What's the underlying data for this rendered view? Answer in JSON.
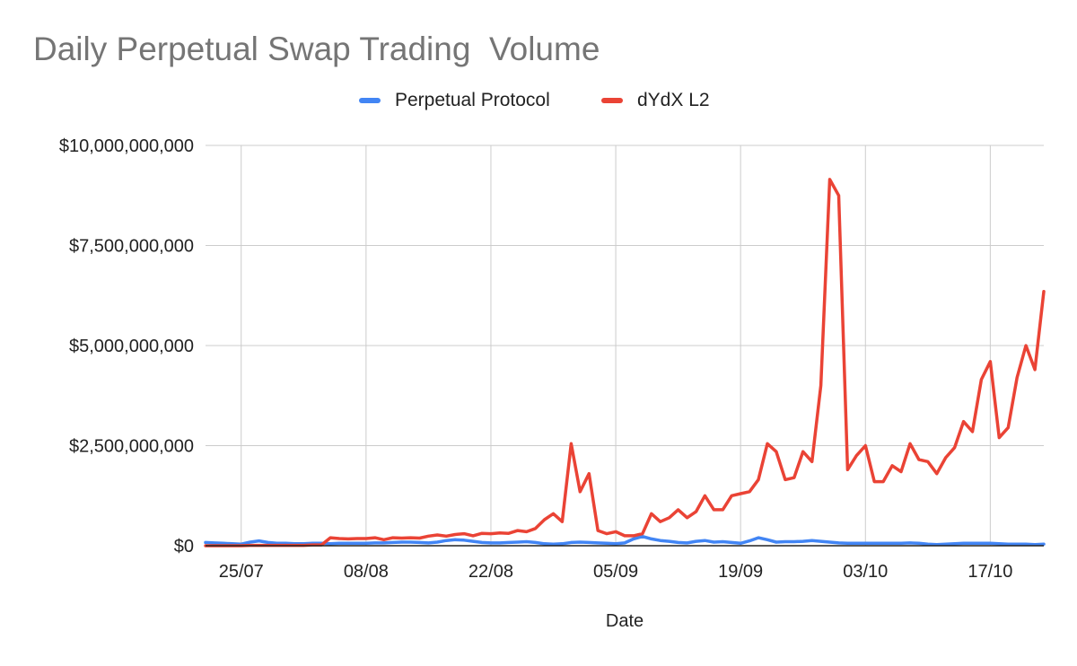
{
  "chart_data": {
    "type": "line",
    "title": "Daily Perpetual Swap Trading  Volume",
    "xlabel": "Date",
    "ylabel": "",
    "ylim": [
      0,
      10000000000
    ],
    "y_ticks": [
      {
        "value": 0,
        "label": "$0"
      },
      {
        "value": 2500000000,
        "label": "$2,500,000,000"
      },
      {
        "value": 5000000000,
        "label": "$5,000,000,000"
      },
      {
        "value": 7500000000,
        "label": "$7,500,000,000"
      },
      {
        "value": 10000000000,
        "label": "$10,000,000,000"
      }
    ],
    "x_ticks": [
      {
        "index": 4,
        "label": "25/07"
      },
      {
        "index": 18,
        "label": "08/08"
      },
      {
        "index": 32,
        "label": "22/08"
      },
      {
        "index": 46,
        "label": "05/09"
      },
      {
        "index": 60,
        "label": "19/09"
      },
      {
        "index": 74,
        "label": "03/10"
      },
      {
        "index": 88,
        "label": "17/10"
      }
    ],
    "grid": true,
    "legend_position": "top-center",
    "series": [
      {
        "name": "Perpetual Protocol",
        "color": "#4285f4",
        "values": [
          80000000,
          70000000,
          60000000,
          50000000,
          40000000,
          90000000,
          120000000,
          80000000,
          60000000,
          60000000,
          50000000,
          50000000,
          60000000,
          60000000,
          50000000,
          60000000,
          60000000,
          60000000,
          60000000,
          70000000,
          70000000,
          80000000,
          90000000,
          90000000,
          80000000,
          70000000,
          90000000,
          130000000,
          150000000,
          140000000,
          110000000,
          80000000,
          70000000,
          70000000,
          80000000,
          90000000,
          100000000,
          80000000,
          50000000,
          40000000,
          50000000,
          80000000,
          90000000,
          80000000,
          70000000,
          60000000,
          50000000,
          70000000,
          170000000,
          230000000,
          170000000,
          130000000,
          110000000,
          80000000,
          70000000,
          110000000,
          130000000,
          90000000,
          100000000,
          80000000,
          60000000,
          120000000,
          200000000,
          150000000,
          90000000,
          100000000,
          100000000,
          110000000,
          130000000,
          110000000,
          90000000,
          70000000,
          60000000,
          60000000,
          60000000,
          60000000,
          60000000,
          60000000,
          60000000,
          70000000,
          60000000,
          40000000,
          30000000,
          40000000,
          50000000,
          60000000,
          60000000,
          60000000,
          60000000,
          50000000,
          40000000,
          40000000,
          40000000,
          30000000,
          40000000
        ]
      },
      {
        "name": "dYdX L2",
        "color": "#ea4335",
        "values": [
          0,
          0,
          0,
          0,
          0,
          10000000,
          10000000,
          10000000,
          10000000,
          10000000,
          10000000,
          10000000,
          20000000,
          20000000,
          200000000,
          180000000,
          170000000,
          180000000,
          180000000,
          200000000,
          150000000,
          200000000,
          190000000,
          200000000,
          190000000,
          240000000,
          270000000,
          240000000,
          280000000,
          300000000,
          250000000,
          310000000,
          300000000,
          320000000,
          310000000,
          380000000,
          350000000,
          430000000,
          650000000,
          800000000,
          600000000,
          2550000000,
          1350000000,
          1800000000,
          380000000,
          300000000,
          350000000,
          250000000,
          250000000,
          300000000,
          800000000,
          600000000,
          700000000,
          900000000,
          700000000,
          850000000,
          1250000000,
          900000000,
          900000000,
          1250000000,
          1300000000,
          1350000000,
          1650000000,
          2550000000,
          2350000000,
          1650000000,
          1700000000,
          2350000000,
          2100000000,
          4000000000,
          9150000000,
          8750000000,
          1900000000,
          2250000000,
          2500000000,
          1600000000,
          1600000000,
          2000000000,
          1850000000,
          2550000000,
          2150000000,
          2100000000,
          1800000000,
          2200000000,
          2450000000,
          3100000000,
          2850000000,
          4150000000,
          4600000000,
          2700000000,
          2950000000,
          4200000000,
          5000000000,
          4400000000,
          6350000000
        ]
      }
    ]
  }
}
